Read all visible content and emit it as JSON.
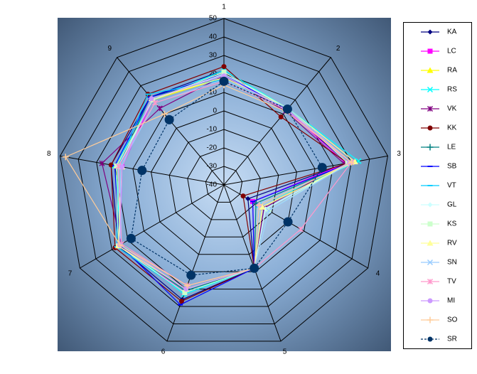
{
  "chart_data": {
    "type": "radar",
    "categories": [
      "1",
      "2",
      "3",
      "4",
      "5",
      "6",
      "7",
      "8",
      "9"
    ],
    "ylim": [
      -40,
      50
    ],
    "yticks": [
      -40,
      -30,
      -20,
      -10,
      0,
      10,
      20,
      30,
      40,
      50
    ],
    "grid": true,
    "legend": "right",
    "series": [
      {
        "name": "KA",
        "color": "#000080",
        "marker": "diamond",
        "values": [
          22,
          13,
          28,
          -25,
          8,
          26,
          26,
          22,
          22
        ]
      },
      {
        "name": "LC",
        "color": "#ff00ff",
        "marker": "square",
        "values": [
          20,
          13,
          27,
          -22,
          8,
          22,
          25,
          16,
          20
        ]
      },
      {
        "name": "RA",
        "color": "#ffff00",
        "marker": "triangle",
        "values": [
          18,
          14,
          30,
          -16,
          8,
          20,
          25,
          19,
          20
        ]
      },
      {
        "name": "RS",
        "color": "#00ffff",
        "marker": "x",
        "values": [
          22,
          14,
          34,
          -18,
          8,
          23,
          24,
          20,
          20
        ]
      },
      {
        "name": "VK",
        "color": "#800080",
        "marker": "star",
        "values": [
          19,
          12,
          26,
          -15,
          8,
          18,
          24,
          27,
          14
        ]
      },
      {
        "name": "KK",
        "color": "#800000",
        "marker": "circle",
        "values": [
          24,
          8,
          28,
          -28,
          8,
          27,
          28,
          22,
          24
        ]
      },
      {
        "name": "LE",
        "color": "#008080",
        "marker": "plus",
        "values": [
          18,
          14,
          29,
          -20,
          8,
          21,
          25,
          18,
          22
        ]
      },
      {
        "name": "SB",
        "color": "#0000ff",
        "marker": "dash",
        "values": [
          20,
          13,
          30,
          -22,
          8,
          29,
          25,
          20,
          22
        ]
      },
      {
        "name": "VT",
        "color": "#00ccff",
        "marker": "dash",
        "values": [
          17,
          14,
          30,
          -18,
          8,
          22,
          27,
          18,
          24
        ]
      },
      {
        "name": "GL",
        "color": "#ccffff",
        "marker": "diamond",
        "values": [
          20,
          14,
          30,
          -14,
          8,
          20,
          25,
          18,
          20
        ]
      },
      {
        "name": "KS",
        "color": "#ccffcc",
        "marker": "square",
        "values": [
          21,
          14,
          28,
          -12,
          8,
          22,
          26,
          19,
          20
        ]
      },
      {
        "name": "RV",
        "color": "#ffff99",
        "marker": "triangle",
        "values": [
          18,
          14,
          32,
          -16,
          8,
          20,
          26,
          16,
          21
        ]
      },
      {
        "name": "SN",
        "color": "#99ccff",
        "marker": "x",
        "values": [
          17,
          14,
          30,
          -12,
          8,
          18,
          24,
          17,
          18
        ]
      },
      {
        "name": "TV",
        "color": "#ff99cc",
        "marker": "star",
        "values": [
          16,
          13,
          30,
          8,
          8,
          18,
          24,
          18,
          18
        ]
      },
      {
        "name": "MI",
        "color": "#cc99ff",
        "marker": "circle",
        "values": [
          19,
          13,
          29,
          -18,
          8,
          20,
          25,
          16,
          21
        ]
      },
      {
        "name": "SO",
        "color": "#ffcc99",
        "marker": "plus",
        "values": [
          14,
          12,
          30,
          -18,
          8,
          18,
          25,
          47,
          10
        ]
      },
      {
        "name": "SR",
        "color": "#003366",
        "marker": "bigcircle",
        "dashed": true,
        "values": [
          16,
          13.5,
          14,
          0,
          8,
          12,
          18,
          5,
          6
        ]
      }
    ]
  }
}
